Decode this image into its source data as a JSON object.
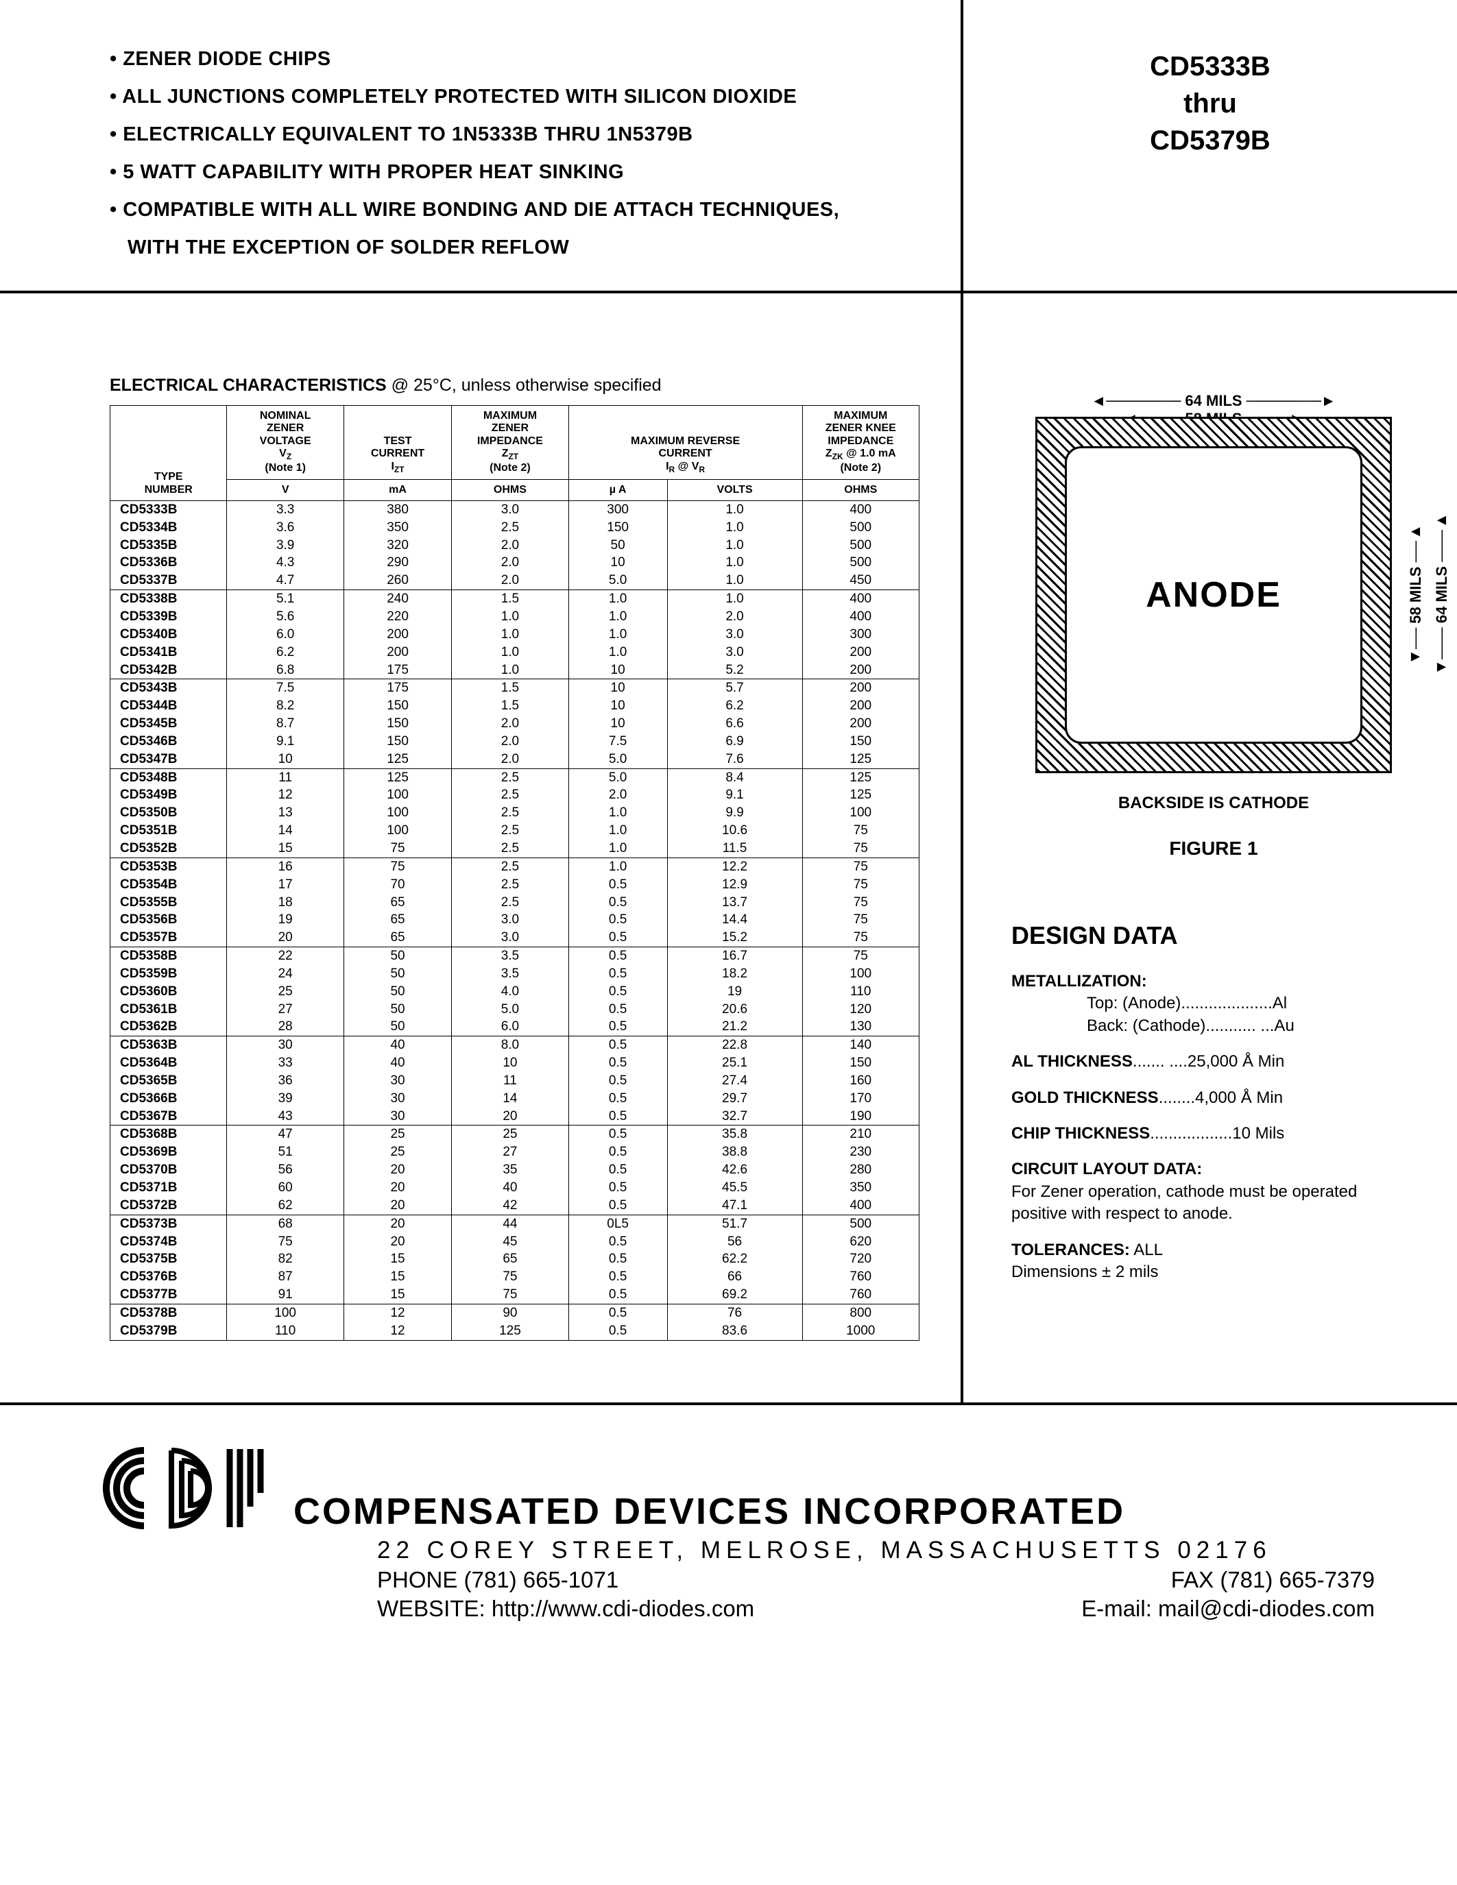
{
  "header": {
    "bullets": [
      "ZENER DIODE CHIPS",
      "ALL JUNCTIONS COMPLETELY PROTECTED WITH SILICON DIOXIDE",
      "ELECTRICALLY EQUIVALENT TO 1N5333B THRU 1N5379B",
      "5 WATT CAPABILITY WITH PROPER HEAT SINKING",
      "COMPATIBLE WITH ALL WIRE BONDING AND DIE ATTACH TECHNIQUES,"
    ],
    "bullet_indent": "WITH THE EXCEPTION OF SOLDER REFLOW",
    "part_from": "CD5333B",
    "part_thru": "thru",
    "part_to": "CD5379B"
  },
  "ec": {
    "title_bold": "ELECTRICAL CHARACTERISTICS",
    "title_rest": " @ 25°C, unless otherwise specified",
    "columns": {
      "type": "TYPE\nNUMBER",
      "vz": "NOMINAL\nZENER\nVOLTAGE\nV_Z\n(Note 1)",
      "izt": "TEST\nCURRENT\nI_ZT",
      "zzt": "MAXIMUM\nZENER\nIMPEDANCE\nZ_ZT\n(Note 2)",
      "ir": "MAXIMUM REVERSE\nCURRENT\nI_R @ V_R",
      "zzk": "MAXIMUM\nZENER KNEE\nIMPEDANCE\nZ_ZK @ 1.0 mA\n(Note 2)"
    },
    "units": {
      "vz": "V",
      "izt": "mA",
      "zzt": "OHMS",
      "ir_ua": "µ A",
      "ir_v": "VOLTS",
      "zzk": "OHMS"
    },
    "groups": [
      [
        [
          "CD5333B",
          "3.3",
          "380",
          "3.0",
          "300",
          "1.0",
          "400"
        ],
        [
          "CD5334B",
          "3.6",
          "350",
          "2.5",
          "150",
          "1.0",
          "500"
        ],
        [
          "CD5335B",
          "3.9",
          "320",
          "2.0",
          "50",
          "1.0",
          "500"
        ],
        [
          "CD5336B",
          "4.3",
          "290",
          "2.0",
          "10",
          "1.0",
          "500"
        ],
        [
          "CD5337B",
          "4.7",
          "260",
          "2.0",
          "5.0",
          "1.0",
          "450"
        ]
      ],
      [
        [
          "CD5338B",
          "5.1",
          "240",
          "1.5",
          "1.0",
          "1.0",
          "400"
        ],
        [
          "CD5339B",
          "5.6",
          "220",
          "1.0",
          "1.0",
          "2.0",
          "400"
        ],
        [
          "CD5340B",
          "6.0",
          "200",
          "1.0",
          "1.0",
          "3.0",
          "300"
        ],
        [
          "CD5341B",
          "6.2",
          "200",
          "1.0",
          "1.0",
          "3.0",
          "200"
        ],
        [
          "CD5342B",
          "6.8",
          "175",
          "1.0",
          "10",
          "5.2",
          "200"
        ]
      ],
      [
        [
          "CD5343B",
          "7.5",
          "175",
          "1.5",
          "10",
          "5.7",
          "200"
        ],
        [
          "CD5344B",
          "8.2",
          "150",
          "1.5",
          "10",
          "6.2",
          "200"
        ],
        [
          "CD5345B",
          "8.7",
          "150",
          "2.0",
          "10",
          "6.6",
          "200"
        ],
        [
          "CD5346B",
          "9.1",
          "150",
          "2.0",
          "7.5",
          "6.9",
          "150"
        ],
        [
          "CD5347B",
          "10",
          "125",
          "2.0",
          "5.0",
          "7.6",
          "125"
        ]
      ],
      [
        [
          "CD5348B",
          "11",
          "125",
          "2.5",
          "5.0",
          "8.4",
          "125"
        ],
        [
          "CD5349B",
          "12",
          "100",
          "2.5",
          "2.0",
          "9.1",
          "125"
        ],
        [
          "CD5350B",
          "13",
          "100",
          "2.5",
          "1.0",
          "9.9",
          "100"
        ],
        [
          "CD5351B",
          "14",
          "100",
          "2.5",
          "1.0",
          "10.6",
          "75"
        ],
        [
          "CD5352B",
          "15",
          "75",
          "2.5",
          "1.0",
          "11.5",
          "75"
        ]
      ],
      [
        [
          "CD5353B",
          "16",
          "75",
          "2.5",
          "1.0",
          "12.2",
          "75"
        ],
        [
          "CD5354B",
          "17",
          "70",
          "2.5",
          "0.5",
          "12.9",
          "75"
        ],
        [
          "CD5355B",
          "18",
          "65",
          "2.5",
          "0.5",
          "13.7",
          "75"
        ],
        [
          "CD5356B",
          "19",
          "65",
          "3.0",
          "0.5",
          "14.4",
          "75"
        ],
        [
          "CD5357B",
          "20",
          "65",
          "3.0",
          "0.5",
          "15.2",
          "75"
        ]
      ],
      [
        [
          "CD5358B",
          "22",
          "50",
          "3.5",
          "0.5",
          "16.7",
          "75"
        ],
        [
          "CD5359B",
          "24",
          "50",
          "3.5",
          "0.5",
          "18.2",
          "100"
        ],
        [
          "CD5360B",
          "25",
          "50",
          "4.0",
          "0.5",
          "19",
          "110"
        ],
        [
          "CD5361B",
          "27",
          "50",
          "5.0",
          "0.5",
          "20.6",
          "120"
        ],
        [
          "CD5362B",
          "28",
          "50",
          "6.0",
          "0.5",
          "21.2",
          "130"
        ]
      ],
      [
        [
          "CD5363B",
          "30",
          "40",
          "8.0",
          "0.5",
          "22.8",
          "140"
        ],
        [
          "CD5364B",
          "33",
          "40",
          "10",
          "0.5",
          "25.1",
          "150"
        ],
        [
          "CD5365B",
          "36",
          "30",
          "11",
          "0.5",
          "27.4",
          "160"
        ],
        [
          "CD5366B",
          "39",
          "30",
          "14",
          "0.5",
          "29.7",
          "170"
        ],
        [
          "CD5367B",
          "43",
          "30",
          "20",
          "0.5",
          "32.7",
          "190"
        ]
      ],
      [
        [
          "CD5368B",
          "47",
          "25",
          "25",
          "0.5",
          "35.8",
          "210"
        ],
        [
          "CD5369B",
          "51",
          "25",
          "27",
          "0.5",
          "38.8",
          "230"
        ],
        [
          "CD5370B",
          "56",
          "20",
          "35",
          "0.5",
          "42.6",
          "280"
        ],
        [
          "CD5371B",
          "60",
          "20",
          "40",
          "0.5",
          "45.5",
          "350"
        ],
        [
          "CD5372B",
          "62",
          "20",
          "42",
          "0.5",
          "47.1",
          "400"
        ]
      ],
      [
        [
          "CD5373B",
          "68",
          "20",
          "44",
          "0L5",
          "51.7",
          "500"
        ],
        [
          "CD5374B",
          "75",
          "20",
          "45",
          "0.5",
          "56",
          "620"
        ],
        [
          "CD5375B",
          "82",
          "15",
          "65",
          "0.5",
          "62.2",
          "720"
        ],
        [
          "CD5376B",
          "87",
          "15",
          "75",
          "0.5",
          "66",
          "760"
        ],
        [
          "CD5377B",
          "91",
          "15",
          "75",
          "0.5",
          "69.2",
          "760"
        ]
      ],
      [
        [
          "CD5378B",
          "100",
          "12",
          "90",
          "0.5",
          "76",
          "800"
        ],
        [
          "CD5379B",
          "110",
          "12",
          "125",
          "0.5",
          "83.6",
          "1000"
        ]
      ]
    ]
  },
  "chip": {
    "outer_dim": "64 MILS",
    "inner_dim": "58 MILS",
    "label": "ANODE",
    "backside": "BACKSIDE IS CATHODE",
    "figure": "FIGURE 1"
  },
  "design": {
    "title": "DESIGN DATA",
    "metallization_label": "METALLIZATION:",
    "met_top": "Top: (Anode)....................Al",
    "met_back": "Back: (Cathode)........... ...Au",
    "al_thick": "AL THICKNESS....... ....25,000 Å Min",
    "gold_thick": "GOLD THICKNESS........4,000 Å Min",
    "chip_thick": "CHIP THICKNESS..................10 Mils",
    "circuit_label": "CIRCUIT LAYOUT DATA:",
    "circuit_text": "For Zener operation, cathode must be operated positive with respect to anode.",
    "tol_label": "TOLERANCES:",
    "tol_text": " ALL\nDimensions ± 2 mils"
  },
  "footer": {
    "company": "COMPENSATED DEVICES INCORPORATED",
    "address": "22 COREY STREET, MELROSE, MASSACHUSETTS 02176",
    "phone": "PHONE (781) 665-1071",
    "fax": "FAX (781) 665-7379",
    "website": "WEBSITE:  http://www.cdi-diodes.com",
    "email": "E-mail: mail@cdi-diodes.com"
  },
  "colors": {
    "text": "#000000",
    "bg": "#ffffff",
    "rule": "#000000"
  }
}
